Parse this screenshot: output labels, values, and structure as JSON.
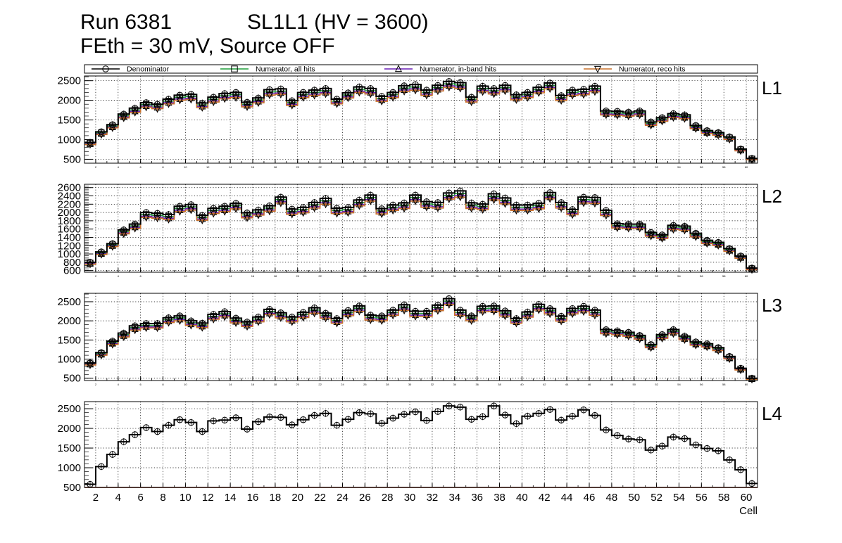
{
  "header": {
    "run": "Run 6381",
    "chamber": "SL1L1 (HV = 3600)",
    "subtitle": "FEth = 30 mV, Source OFF"
  },
  "chart_data": {
    "type": "histogram-step",
    "xlabel": "Cell",
    "xlim": [
      1,
      61
    ],
    "x_ticks": [
      "2",
      "4",
      "6",
      "8",
      "10",
      "12",
      "14",
      "16",
      "18",
      "20",
      "22",
      "24",
      "26",
      "28",
      "30",
      "32",
      "34",
      "36",
      "38",
      "40",
      "42",
      "44",
      "46",
      "48",
      "50",
      "52",
      "54",
      "56",
      "58",
      "60"
    ],
    "grid": true,
    "legend": [
      {
        "name": "Denominator",
        "color": "#000000",
        "marker": "circle"
      },
      {
        "name": "Numerator, all hits",
        "color": "#1f9e3a",
        "marker": "square"
      },
      {
        "name": "Numerator, in-band hits",
        "color": "#6a1fb5",
        "marker": "triangle-up"
      },
      {
        "name": "Numerator, reco hits",
        "color": "#c8702a",
        "marker": "triangle-down"
      }
    ],
    "panels": [
      {
        "label": "L1",
        "ylim": [
          400,
          2620
        ],
        "y_ticks": [
          "500",
          "1000",
          "1500",
          "2000",
          "2500"
        ],
        "tiny_x_labels": true,
        "denominator": [
          930,
          1200,
          1380,
          1650,
          1800,
          1940,
          1900,
          2030,
          2130,
          2150,
          1930,
          2080,
          2170,
          2200,
          1950,
          2060,
          2270,
          2290,
          1990,
          2200,
          2260,
          2300,
          2030,
          2190,
          2340,
          2300,
          2100,
          2200,
          2370,
          2400,
          2260,
          2380,
          2480,
          2450,
          2080,
          2360,
          2300,
          2380,
          2140,
          2200,
          2330,
          2440,
          2120,
          2260,
          2280,
          2360,
          1730,
          1720,
          1700,
          1730,
          1450,
          1560,
          1660,
          1630,
          1360,
          1230,
          1180,
          1070,
          760,
          520
        ],
        "ratios": [
          0.975,
          0.955,
          0.94
        ]
      },
      {
        "label": "L2",
        "ylim": [
          560,
          2680
        ],
        "y_ticks": [
          "600",
          "800",
          "1000",
          "1200",
          "1400",
          "1600",
          "1800",
          "2000",
          "2200",
          "2400",
          "2600"
        ],
        "tiny_x_labels": true,
        "denominator": [
          800,
          1050,
          1250,
          1580,
          1720,
          2000,
          1980,
          1950,
          2150,
          2190,
          1930,
          2100,
          2150,
          2220,
          1990,
          2060,
          2160,
          2370,
          2080,
          2120,
          2240,
          2340,
          2100,
          2120,
          2300,
          2420,
          2090,
          2180,
          2230,
          2420,
          2260,
          2240,
          2470,
          2520,
          2230,
          2200,
          2450,
          2350,
          2180,
          2180,
          2220,
          2480,
          2240,
          2070,
          2370,
          2360,
          2050,
          1730,
          1720,
          1720,
          1520,
          1460,
          1690,
          1670,
          1500,
          1330,
          1280,
          1130,
          950,
          660
        ],
        "ratios": [
          0.975,
          0.955,
          0.94
        ]
      },
      {
        "label": "L3",
        "ylim": [
          440,
          2720
        ],
        "y_ticks": [
          "500",
          "1000",
          "1500",
          "2000",
          "2500"
        ],
        "tiny_x_labels": true,
        "denominator": [
          900,
          1170,
          1470,
          1680,
          1870,
          1930,
          1930,
          2080,
          2130,
          2000,
          1940,
          2170,
          2240,
          2070,
          1970,
          2100,
          2300,
          2210,
          2100,
          2220,
          2340,
          2200,
          2060,
          2270,
          2390,
          2150,
          2130,
          2280,
          2420,
          2250,
          2250,
          2410,
          2580,
          2280,
          2130,
          2380,
          2390,
          2260,
          2060,
          2230,
          2430,
          2320,
          2120,
          2320,
          2380,
          2280,
          1770,
          1740,
          1700,
          1620,
          1380,
          1640,
          1770,
          1600,
          1450,
          1400,
          1300,
          1070,
          760,
          500
        ],
        "ratios": [
          0.975,
          0.955,
          0.94
        ]
      },
      {
        "label": "L4",
        "ylim": [
          500,
          2680
        ],
        "y_ticks": [
          "500",
          "1000",
          "1500",
          "2000",
          "2500"
        ],
        "tiny_x_labels": false,
        "denominator": [
          580,
          1030,
          1340,
          1660,
          1840,
          2020,
          1920,
          2080,
          2220,
          2150,
          1920,
          2190,
          2210,
          2270,
          1980,
          2170,
          2290,
          2280,
          2090,
          2220,
          2330,
          2380,
          2080,
          2230,
          2400,
          2370,
          2130,
          2260,
          2360,
          2420,
          2200,
          2430,
          2570,
          2540,
          2230,
          2300,
          2570,
          2340,
          2120,
          2310,
          2380,
          2480,
          2210,
          2310,
          2470,
          2330,
          1960,
          1820,
          1730,
          1710,
          1450,
          1550,
          1780,
          1740,
          1580,
          1490,
          1430,
          1200,
          950,
          600
        ],
        "ratios": [
          0.0,
          0.0,
          0.0
        ]
      }
    ]
  }
}
